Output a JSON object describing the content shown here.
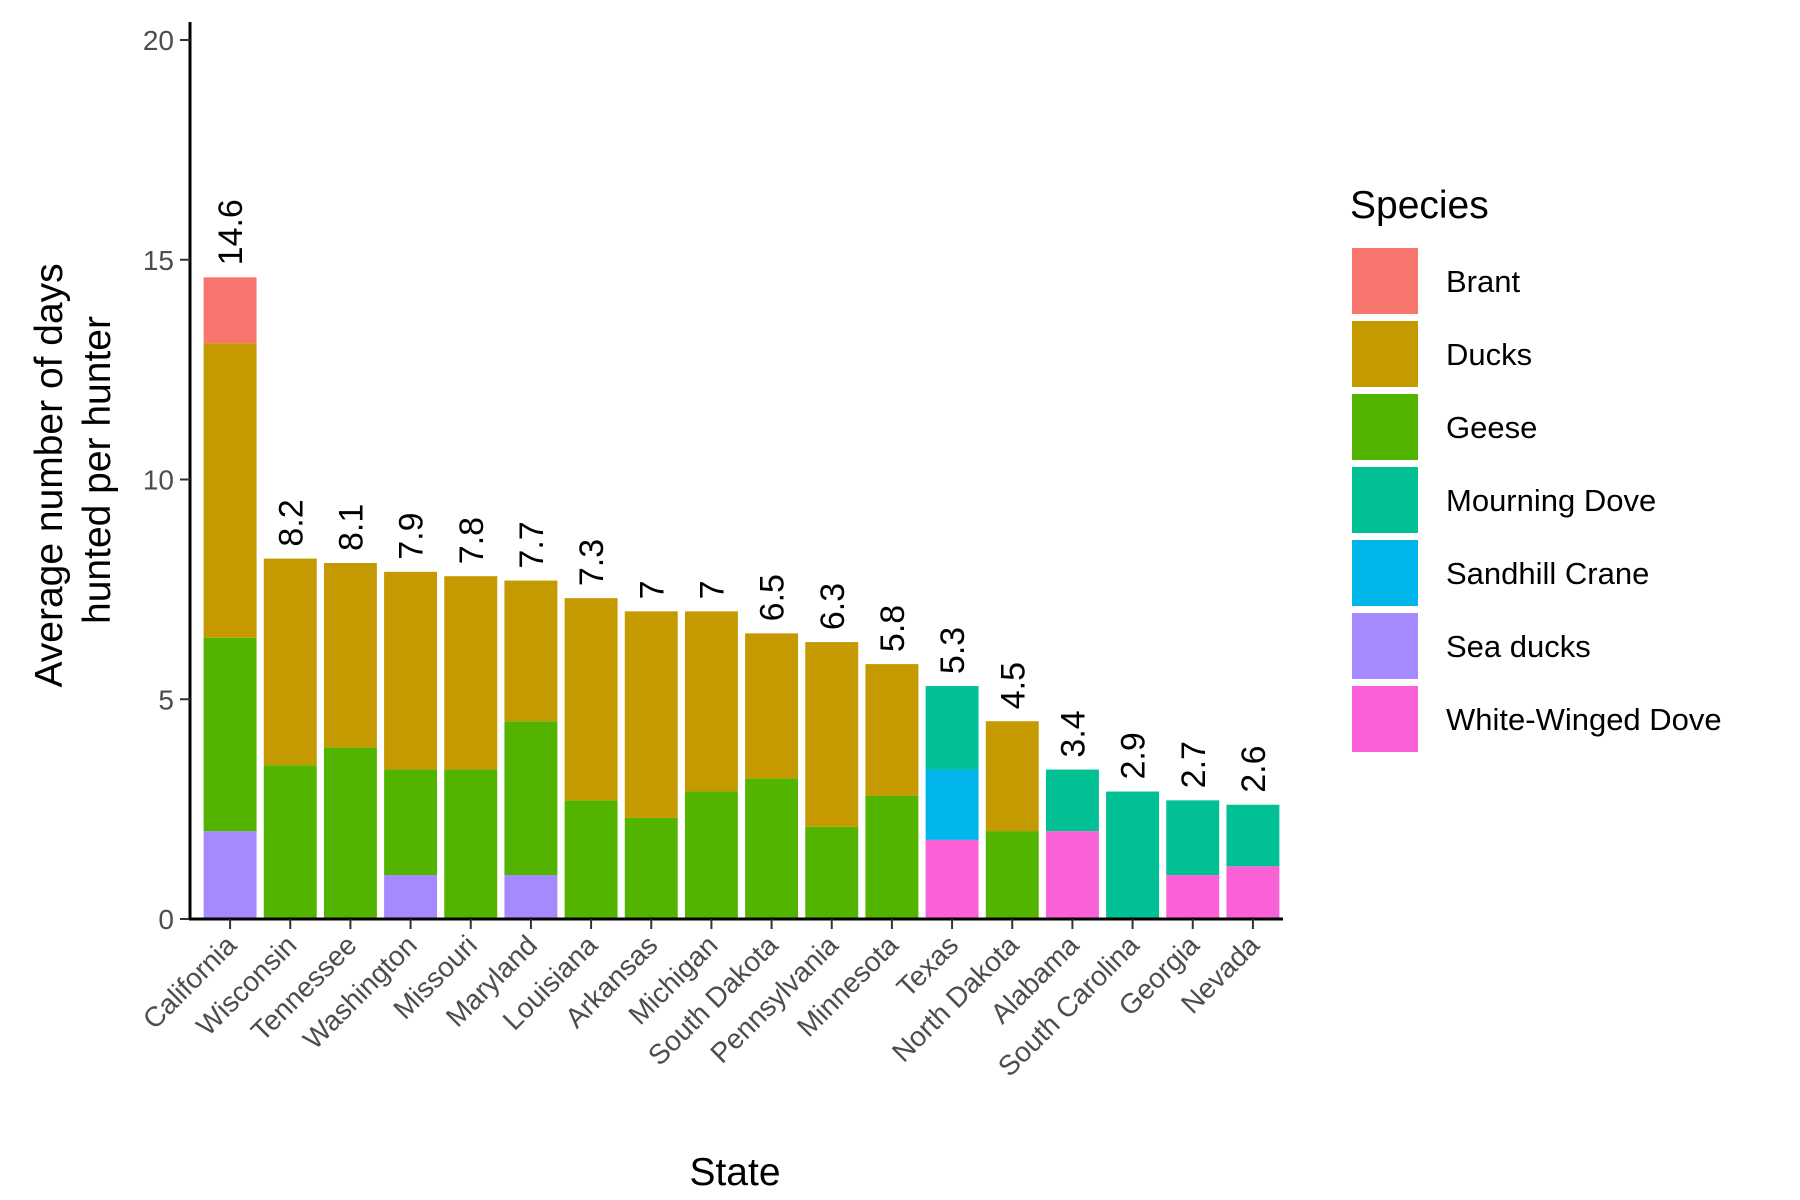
{
  "chart_data": {
    "type": "bar",
    "stacked": true,
    "xlabel": "State",
    "ylabel_lines": [
      "Average number of days",
      "hunted per hunter"
    ],
    "ylim": [
      0,
      20
    ],
    "yticks": [
      0,
      5,
      10,
      15,
      20
    ],
    "grid": false,
    "legend_position": "right",
    "legend_title": "Species",
    "categories": [
      "California",
      "Wisconsin",
      "Tennessee",
      "Washington",
      "Missouri",
      "Maryland",
      "Louisiana",
      "Arkansas",
      "Michigan",
      "South Dakota",
      "Pennsylvania",
      "Minnesota",
      "Texas",
      "North Dakota",
      "Alabama",
      "South Carolina",
      "Georgia",
      "Nevada"
    ],
    "totals": [
      "14.6",
      "8.2",
      "8.1",
      "7.9",
      "7.8",
      "7.7",
      "7.3",
      "7",
      "7",
      "6.5",
      "6.3",
      "5.8",
      "5.3",
      "4.5",
      "3.4",
      "2.9",
      "2.7",
      "2.6"
    ],
    "series": [
      {
        "name": "Brant",
        "color": "#F8766D",
        "values": [
          1.5,
          0,
          0,
          0,
          0,
          0,
          0,
          0,
          0,
          0,
          0,
          0,
          0,
          0,
          0,
          0,
          0,
          0
        ]
      },
      {
        "name": "Ducks",
        "color": "#C49A00",
        "values": [
          6.7,
          4.7,
          4.2,
          4.5,
          4.4,
          3.2,
          4.6,
          4.7,
          4.1,
          3.3,
          4.2,
          3.0,
          0,
          2.5,
          0,
          0,
          0,
          0
        ]
      },
      {
        "name": "Geese",
        "color": "#53B400",
        "values": [
          4.4,
          3.5,
          3.9,
          2.4,
          3.4,
          3.5,
          2.7,
          2.3,
          2.9,
          3.2,
          2.1,
          2.8,
          0,
          2.0,
          0,
          0,
          0,
          0
        ]
      },
      {
        "name": "Mourning Dove",
        "color": "#00C094",
        "values": [
          0,
          0,
          0,
          0,
          0,
          0,
          0,
          0,
          0,
          0,
          0,
          0,
          1.9,
          0,
          1.4,
          2.9,
          1.7,
          1.4
        ]
      },
      {
        "name": "Sandhill Crane",
        "color": "#00B6EB",
        "values": [
          0,
          0,
          0,
          0,
          0,
          0,
          0,
          0,
          0,
          0,
          0,
          0,
          1.6,
          0,
          0,
          0,
          0,
          0
        ]
      },
      {
        "name": "Sea ducks",
        "color": "#A58AFF",
        "values": [
          2.0,
          0,
          0,
          1.0,
          0,
          1.0,
          0,
          0,
          0,
          0,
          0,
          0,
          0,
          0,
          0,
          0,
          0,
          0
        ]
      },
      {
        "name": "White-Winged Dove",
        "color": "#FB61D7",
        "values": [
          0,
          0,
          0,
          0,
          0,
          0,
          0,
          0,
          0,
          0,
          0,
          0,
          1.8,
          0,
          2.0,
          0,
          1.0,
          1.2
        ]
      }
    ],
    "stack_order_bottom_to_top": [
      "White-Winged Dove",
      "Sea ducks",
      "Sandhill Crane",
      "Mourning Dove",
      "Geese",
      "Ducks",
      "Brant"
    ]
  }
}
